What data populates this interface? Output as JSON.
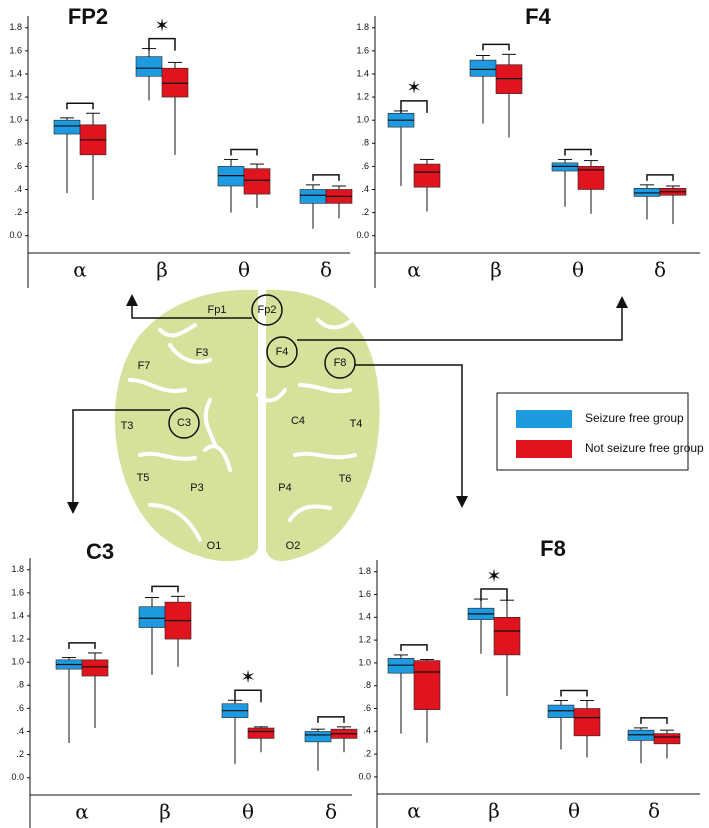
{
  "chart_data": [
    {
      "type": "box",
      "title": "FP2",
      "categories": [
        "α",
        "β",
        "θ",
        "δ"
      ],
      "ylim": [
        -0.15,
        1.85
      ],
      "yticks": [
        {
          "value": 0,
          "label": "0.0"
        },
        {
          "value": 0.2,
          "label": ".2"
        },
        {
          "value": 0.4,
          "label": ".4"
        },
        {
          "value": 0.6,
          "label": ".6"
        },
        {
          "value": 0.8,
          "label": ".8"
        },
        {
          "value": 1,
          "label": "1.0"
        },
        1.2,
        1.4,
        1.6,
        1.8
      ],
      "series": [
        {
          "min": [
            0.37,
            1.17,
            0.2,
            0.06
          ],
          "q1": [
            0.88,
            1.38,
            0.43,
            0.28
          ],
          "median": [
            0.95,
            1.45,
            0.52,
            0.35
          ],
          "q3": [
            1.0,
            1.55,
            0.6,
            0.4
          ],
          "max": [
            1.02,
            1.62,
            0.66,
            0.44
          ]
        },
        {
          "min": [
            0.31,
            0.7,
            0.24,
            0.15
          ],
          "q1": [
            0.7,
            1.2,
            0.36,
            0.28
          ],
          "median": [
            0.83,
            1.32,
            0.48,
            0.34
          ],
          "q3": [
            0.96,
            1.45,
            0.58,
            0.4
          ],
          "max": [
            1.06,
            1.5,
            0.62,
            0.43
          ]
        }
      ],
      "annotations": [
        {
          "text": "✶",
          "category": "β"
        }
      ]
    },
    {
      "type": "box",
      "title": "F4",
      "categories": [
        "α",
        "β",
        "θ",
        "δ"
      ],
      "ylim": [
        -0.15,
        1.85
      ],
      "yticks": [
        {
          "value": 0,
          "label": "0.0"
        },
        {
          "value": 0.2,
          "label": ".2"
        },
        {
          "value": 0.4,
          "label": ".4"
        },
        {
          "value": 0.6,
          "label": ".6"
        },
        {
          "value": 0.8,
          "label": ".8"
        },
        {
          "value": 1,
          "label": "1.0"
        },
        1.2,
        1.4,
        1.6,
        1.8
      ],
      "series": [
        {
          "min": [
            0.43,
            0.97,
            0.25,
            0.14
          ],
          "q1": [
            0.94,
            1.38,
            0.56,
            0.34
          ],
          "median": [
            1.0,
            1.44,
            0.6,
            0.37
          ],
          "q3": [
            1.06,
            1.52,
            0.63,
            0.41
          ],
          "max": [
            1.08,
            1.56,
            0.66,
            0.44
          ]
        },
        {
          "min": [
            0.21,
            0.85,
            0.19,
            0.1
          ],
          "q1": [
            0.42,
            1.23,
            0.4,
            0.35
          ],
          "median": [
            0.55,
            1.36,
            0.57,
            0.38
          ],
          "q3": [
            0.62,
            1.48,
            0.6,
            0.41
          ],
          "max": [
            0.66,
            1.57,
            0.65,
            0.43
          ]
        }
      ],
      "annotations": [
        {
          "text": "✶",
          "category": "α"
        }
      ]
    },
    {
      "type": "box",
      "title": "C3",
      "categories": [
        "α",
        "β",
        "θ",
        "δ"
      ],
      "ylim": [
        -0.15,
        1.85
      ],
      "yticks": [
        {
          "value": 0,
          "label": "0.0"
        },
        {
          "value": 0.2,
          "label": ".2"
        },
        {
          "value": 0.4,
          "label": ".4"
        },
        {
          "value": 0.6,
          "label": ".6"
        },
        {
          "value": 0.8,
          "label": ".8"
        },
        {
          "value": 1,
          "label": "1.0"
        },
        1.2,
        1.4,
        1.6,
        1.8
      ],
      "series": [
        {
          "min": [
            0.3,
            0.89,
            0.12,
            0.06
          ],
          "q1": [
            0.94,
            1.3,
            0.52,
            0.31
          ],
          "median": [
            0.98,
            1.38,
            0.58,
            0.37
          ],
          "q3": [
            1.02,
            1.48,
            0.64,
            0.4
          ],
          "max": [
            1.04,
            1.56,
            0.67,
            0.42
          ]
        },
        {
          "min": [
            0.43,
            0.96,
            0.22,
            0.22
          ],
          "q1": [
            0.88,
            1.2,
            0.34,
            0.34
          ],
          "median": [
            0.96,
            1.36,
            0.4,
            0.38
          ],
          "q3": [
            1.02,
            1.52,
            0.43,
            0.42
          ],
          "max": [
            1.08,
            1.57,
            0.44,
            0.44
          ]
        }
      ],
      "annotations": [
        {
          "text": "✶",
          "category": "θ"
        }
      ]
    },
    {
      "type": "box",
      "title": "F8",
      "categories": [
        "α",
        "β",
        "θ",
        "δ"
      ],
      "ylim": [
        -0.15,
        1.85
      ],
      "yticks": [
        {
          "value": 0,
          "label": "0.0"
        },
        {
          "value": 0.2,
          "label": ".2"
        },
        {
          "value": 0.4,
          "label": ".4"
        },
        {
          "value": 0.6,
          "label": ".6"
        },
        {
          "value": 0.8,
          "label": ".8"
        },
        {
          "value": 1,
          "label": "1.0"
        },
        1.2,
        1.4,
        1.6,
        1.8
      ],
      "series": [
        {
          "min": [
            0.38,
            1.08,
            0.24,
            0.12
          ],
          "q1": [
            0.91,
            1.38,
            0.52,
            0.32
          ],
          "median": [
            0.98,
            1.43,
            0.58,
            0.37
          ],
          "q3": [
            1.04,
            1.48,
            0.63,
            0.41
          ],
          "max": [
            1.07,
            1.56,
            0.67,
            0.43
          ]
        },
        {
          "min": [
            0.3,
            0.71,
            0.17,
            0.16
          ],
          "q1": [
            0.59,
            1.07,
            0.36,
            0.29
          ],
          "median": [
            0.92,
            1.28,
            0.52,
            0.35
          ],
          "q3": [
            1.02,
            1.4,
            0.6,
            0.38
          ],
          "max": [
            1.03,
            1.55,
            0.67,
            0.41
          ]
        }
      ],
      "annotations": [
        {
          "text": "✶",
          "category": "β"
        }
      ]
    }
  ],
  "legend": {
    "entries": [
      {
        "name": "Seizure free group",
        "color": "#1e9be0"
      },
      {
        "name": "Not seizure free group",
        "color": "#e0141e"
      }
    ]
  },
  "diagram": {
    "electrodes": [
      "Fp1",
      "Fp2",
      "F3",
      "F4",
      "F7",
      "F8",
      "C3",
      "C4",
      "T3",
      "T4",
      "T5",
      "T6",
      "P3",
      "P4",
      "O1",
      "O2"
    ]
  }
}
